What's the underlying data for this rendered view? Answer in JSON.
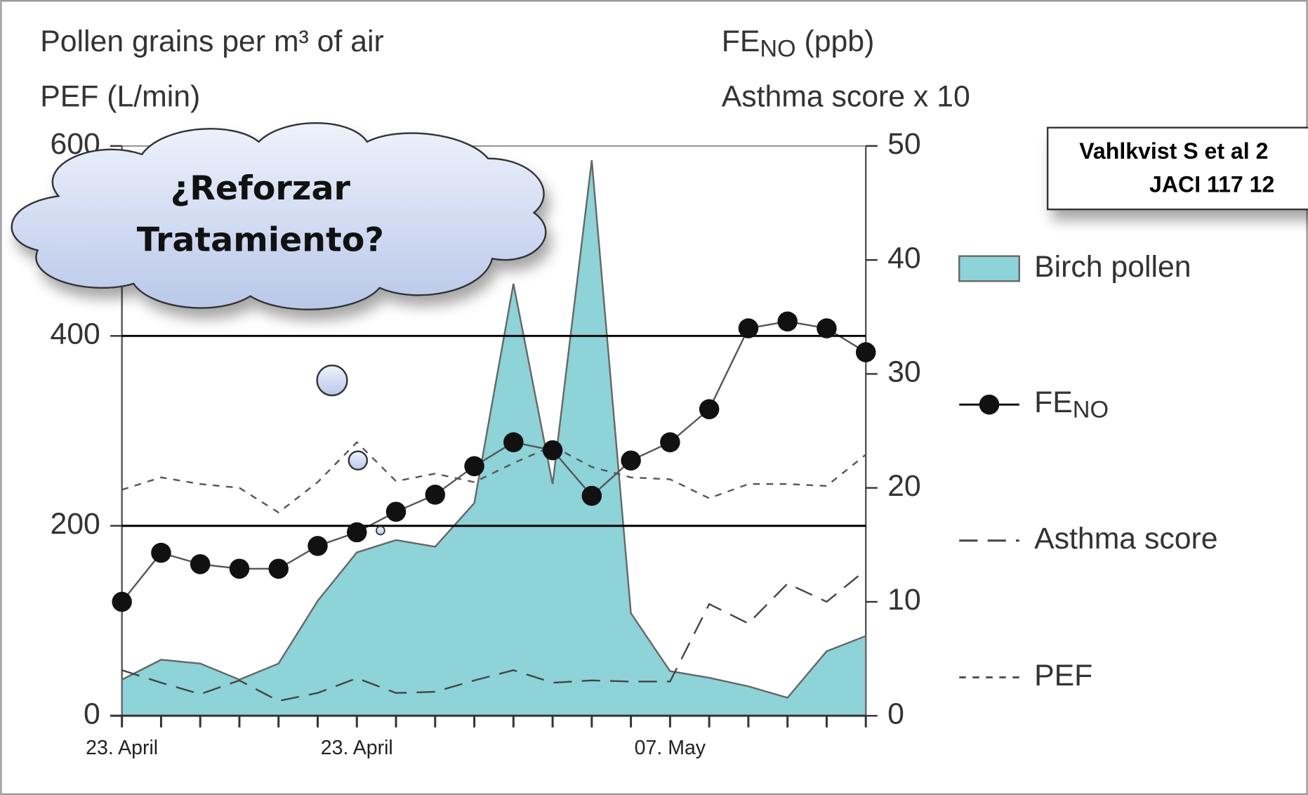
{
  "chart_data": {
    "type": "combo",
    "y_label_lines": [
      "Pollen grains per m³ of air",
      "PEF (L/min)"
    ],
    "y2_label_lines": [
      "FENO (ppb)",
      "Asthma score x 10"
    ],
    "categories": [
      "23. April",
      null,
      null,
      null,
      null,
      null,
      "23. April",
      null,
      null,
      null,
      null,
      null,
      null,
      null,
      "07. May",
      null,
      null,
      null,
      null,
      null
    ],
    "ylim": [
      0,
      600
    ],
    "yticks": [
      0,
      200,
      400,
      600
    ],
    "y2lim": [
      0,
      50
    ],
    "y2ticks": [
      0,
      10,
      20,
      30,
      40,
      50
    ],
    "grid": true,
    "legend": "right",
    "series": [
      {
        "name": "Birch pollen",
        "kind": "area",
        "color": "#8dd3d8",
        "values": [
          38,
          59,
          55,
          38,
          55,
          121,
          172,
          185,
          178,
          224,
          455,
          244,
          585,
          108,
          47,
          40,
          31,
          19,
          68,
          84
        ]
      },
      {
        "name": "FENO",
        "kind": "line-markers",
        "axis": "y2",
        "color": "#111111",
        "values": [
          10.0,
          14.3,
          13.3,
          12.9,
          12.9,
          14.9,
          16.1,
          17.9,
          19.4,
          21.9,
          24.0,
          23.3,
          19.3,
          22.4,
          24.0,
          26.9,
          34.0,
          34.6,
          34.0,
          31.9
        ]
      },
      {
        "name": "Asthma score",
        "kind": "long-dash",
        "axis": "y2",
        "color": "#444444",
        "values": [
          4.0,
          2.9,
          1.9,
          3.1,
          1.3,
          2.0,
          3.3,
          2.0,
          2.1,
          3.1,
          4.0,
          2.9,
          3.1,
          3.0,
          3.0,
          9.8,
          8.1,
          11.6,
          10.0,
          12.8
        ]
      },
      {
        "name": "PEF",
        "kind": "short-dash",
        "color": "#555555",
        "values": [
          238,
          251,
          244,
          240,
          214,
          246,
          288,
          247,
          255,
          246,
          266,
          284,
          262,
          251,
          249,
          229,
          244,
          244,
          242,
          275
        ]
      }
    ]
  },
  "callout": {
    "lines": [
      "¿Reforzar",
      "Tratamiento?"
    ]
  },
  "citation": {
    "lines": [
      "Vahlkvist S et al 2",
      "JACI 117 12"
    ]
  }
}
